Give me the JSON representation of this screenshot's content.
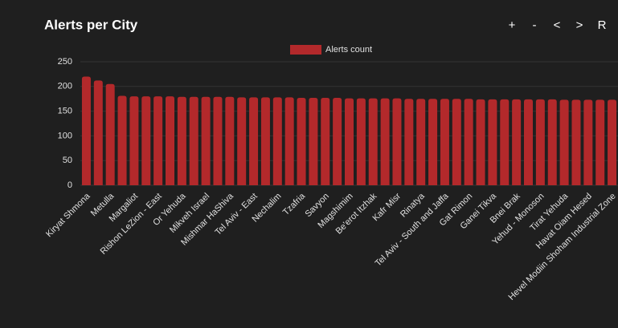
{
  "chart_data": {
    "type": "bar",
    "title": "Alerts per City",
    "legend": "Alerts count",
    "color": "#b3292b",
    "categories": [
      "Kiryat Shmona",
      null,
      "Metulla",
      null,
      "Margaliot",
      null,
      "Rishon LeZion - East",
      null,
      "Or Yehuda",
      null,
      "Mikveh Israel",
      null,
      "Mishmar HaShiva",
      null,
      "Tel Aviv - East",
      null,
      "Nechalim",
      null,
      "Tzafria",
      null,
      "Savyon",
      null,
      "Magshimim",
      null,
      "Be'erot Itzhak",
      null,
      "Kafr Misr",
      null,
      "Rinatya",
      null,
      "Tel Aviv - South and Jaffa",
      null,
      "Gat Rimon",
      null,
      "Ganei Tikva",
      null,
      "Bnei Brak",
      null,
      "Yehud - Monoson",
      null,
      "Tirat Yehuda",
      null,
      "Havat Oiam Hesed",
      null,
      "Hevel Modiin Shoham Industrial Zone"
    ],
    "values": [
      220,
      212,
      205,
      181,
      180,
      180,
      180,
      180,
      179,
      179,
      179,
      179,
      179,
      178,
      178,
      178,
      178,
      178,
      177,
      177,
      177,
      177,
      176,
      176,
      176,
      176,
      176,
      175,
      175,
      175,
      175,
      175,
      175,
      174,
      174,
      174,
      174,
      174,
      174,
      174,
      173,
      173,
      173,
      173,
      173
    ],
    "ylim": [
      0,
      250
    ],
    "yticks": [
      0,
      50,
      100,
      150,
      200,
      250
    ],
    "grid": true
  },
  "toolbar": [
    "+",
    "-",
    "<",
    ">",
    "R"
  ]
}
